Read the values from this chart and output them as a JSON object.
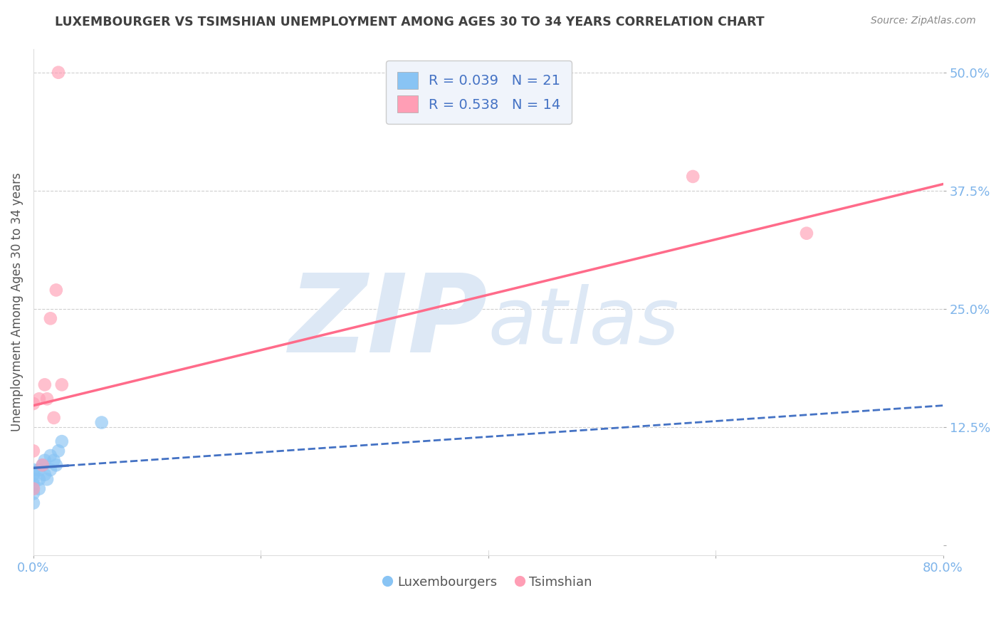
{
  "title": "LUXEMBOURGER VS TSIMSHIAN UNEMPLOYMENT AMONG AGES 30 TO 34 YEARS CORRELATION CHART",
  "source": "Source: ZipAtlas.com",
  "ylabel": "Unemployment Among Ages 30 to 34 years",
  "xlim": [
    0.0,
    0.8
  ],
  "ylim": [
    -0.01,
    0.525
  ],
  "xticks": [
    0.0,
    0.8
  ],
  "xticklabels": [
    "0.0%",
    "80.0%"
  ],
  "yticks": [
    0.0,
    0.125,
    0.25,
    0.375,
    0.5
  ],
  "yticklabels": [
    "",
    "12.5%",
    "25.0%",
    "37.5%",
    "50.0%"
  ],
  "luxembourger_x": [
    0.0,
    0.0,
    0.0,
    0.0,
    0.0,
    0.0,
    0.0,
    0.005,
    0.005,
    0.005,
    0.008,
    0.01,
    0.01,
    0.012,
    0.015,
    0.015,
    0.018,
    0.02,
    0.022,
    0.025,
    0.06
  ],
  "luxembourger_y": [
    0.045,
    0.055,
    0.06,
    0.065,
    0.07,
    0.075,
    0.08,
    0.06,
    0.07,
    0.08,
    0.085,
    0.075,
    0.09,
    0.07,
    0.08,
    0.095,
    0.09,
    0.085,
    0.1,
    0.11,
    0.13
  ],
  "tsimshian_x": [
    0.0,
    0.0,
    0.0,
    0.005,
    0.008,
    0.01,
    0.012,
    0.015,
    0.018,
    0.02,
    0.022,
    0.025,
    0.58,
    0.68
  ],
  "tsimshian_y": [
    0.15,
    0.06,
    0.1,
    0.155,
    0.085,
    0.17,
    0.155,
    0.24,
    0.135,
    0.27,
    0.5,
    0.17,
    0.39,
    0.33
  ],
  "lux_R": 0.039,
  "lux_N": 21,
  "tsim_R": 0.538,
  "tsim_N": 14,
  "lux_color": "#89C4F4",
  "tsim_color": "#FF9EB5",
  "lux_line_color": "#4472C4",
  "tsim_line_color": "#FF6B8A",
  "background_color": "#FFFFFF",
  "grid_color": "#BBBBBB",
  "title_color": "#404040",
  "axis_label_color": "#555555",
  "tick_color_x": "#7EB4EA",
  "tick_color_y": "#7EB4EA",
  "source_color": "#888888",
  "legend_text_color": "#4472C4",
  "watermark_color": "#DDE8F5",
  "tsim_line_start_y": 0.148,
  "tsim_line_end_y": 0.382,
  "lux_line_start_y": 0.082,
  "lux_line_end_y": 0.148
}
